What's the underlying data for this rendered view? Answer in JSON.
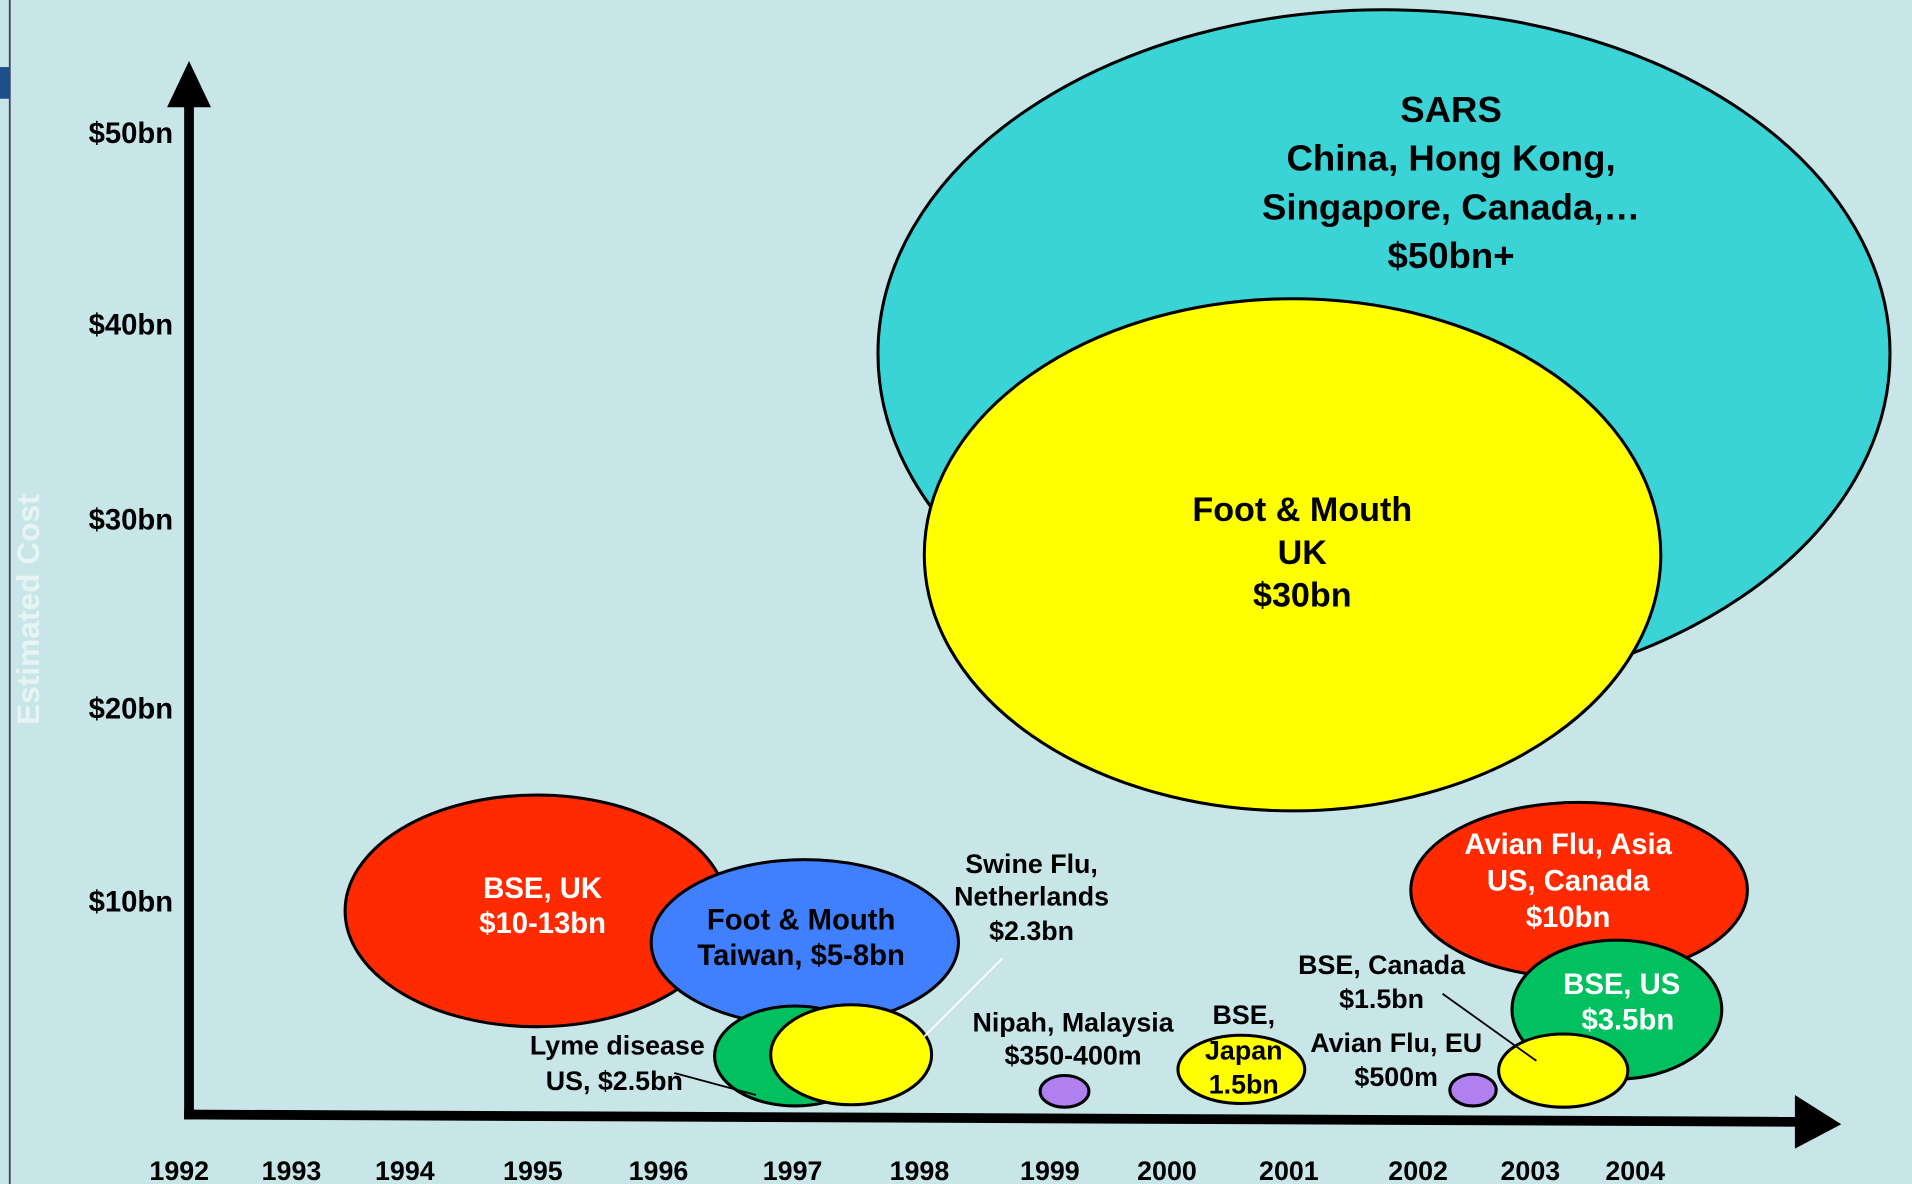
{
  "axis_title": "Estimated Cost",
  "y_labels": [
    "$50bn",
    "$40bn",
    "$30bn",
    "$20bn",
    "$10bn"
  ],
  "x_labels": [
    "1992",
    "1993",
    "1994",
    "1995",
    "1996",
    "1997",
    "1998",
    "1999",
    "2000",
    "2001",
    "2002",
    "2003",
    "2004"
  ],
  "bubbles": [
    {
      "lines": [
        "SARS",
        "China, Hong Kong,",
        "Singapore, Canada,…",
        "$50bn+"
      ]
    },
    {
      "lines": [
        "Foot & Mouth",
        "UK",
        "$30bn"
      ]
    },
    {
      "lines": [
        "BSE, UK",
        "$10-13bn"
      ]
    },
    {
      "lines": [
        "Foot & Mouth",
        "Taiwan, $5-8bn"
      ]
    },
    {
      "lines": [
        "Swine Flu,",
        "Netherlands",
        "$2.3bn"
      ]
    },
    {
      "lines": [
        "Lyme disease",
        "US, $2.5bn"
      ]
    },
    {
      "lines": [
        "Nipah, Malaysia",
        "$350-400m"
      ]
    },
    {
      "lines": [
        "BSE,",
        "Japan",
        "1.5bn"
      ]
    },
    {
      "lines": [
        "BSE, Canada",
        "$1.5bn"
      ]
    },
    {
      "lines": [
        "Avian Flu, EU",
        "$500m"
      ]
    },
    {
      "lines": [
        "Avian Flu, Asia",
        "US, Canada",
        "$10bn"
      ]
    },
    {
      "lines": [
        "BSE, US",
        "$3.5bn"
      ]
    }
  ]
}
